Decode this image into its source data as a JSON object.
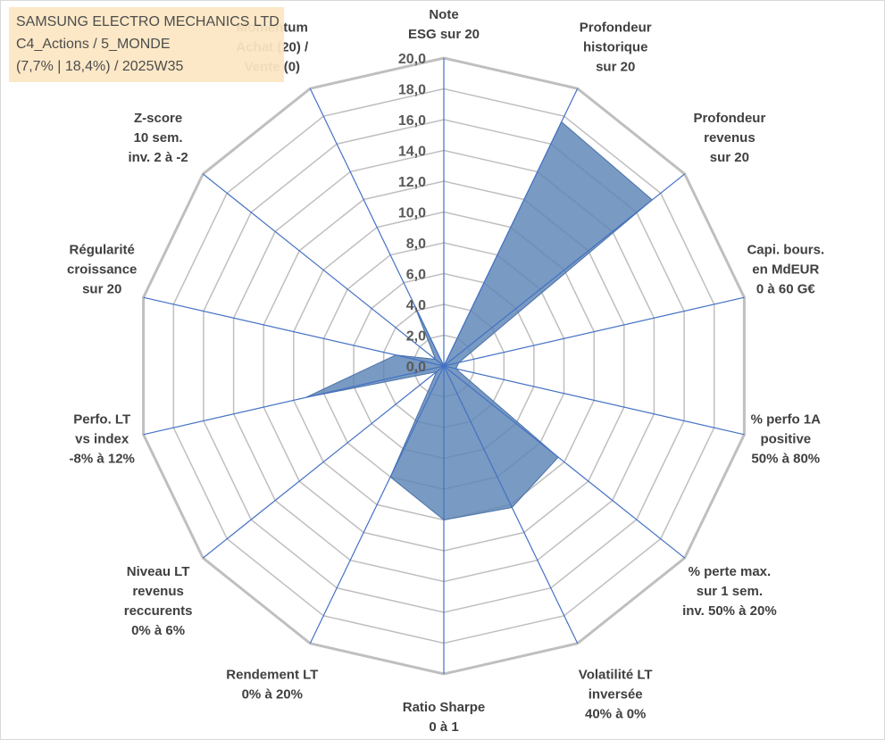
{
  "info_box": {
    "line1": "SAMSUNG ELECTRO MECHANICS LTD",
    "line2": "C4_Actions / 5_MONDE",
    "line3": "(7,7% | 18,4%) / 2025W35"
  },
  "chart_data": {
    "type": "radar",
    "rlim": [
      0,
      20
    ],
    "ticks": [
      "0,0",
      "2,0",
      "4,0",
      "6,0",
      "8,0",
      "10,0",
      "12,0",
      "14,0",
      "16,0",
      "18,0",
      "20,0"
    ],
    "grid": true,
    "colors": {
      "fill": "#5b84b5",
      "grid": "#bfbfbf",
      "spoke": "#4472c4",
      "text": "#404040"
    },
    "axes": [
      [
        "Note",
        "ESG sur 20"
      ],
      [
        "Profondeur",
        "historique",
        "sur 20"
      ],
      [
        "Profondeur",
        "revenus",
        "sur 20"
      ],
      [
        "Capi. bours.",
        "en MdEUR",
        "0 à 60 G€"
      ],
      [
        "% perfo 1A",
        "positive",
        "50% à 80%"
      ],
      [
        "% perte max.",
        "sur 1 sem.",
        "inv. 50% à 20%"
      ],
      [
        "Volatilité LT",
        "inversée",
        "40% à 0%"
      ],
      [
        "Ratio Sharpe",
        "0 à 1"
      ],
      [
        "Rendement LT",
        "0% à 20%"
      ],
      [
        "Niveau LT",
        "revenus",
        "reccurents",
        "0% à 6%"
      ],
      [
        "Perfo. LT",
        "vs index",
        "-8% à 12%"
      ],
      [
        "Régularité",
        "croissance",
        "sur 20"
      ],
      [
        "Z-score",
        "10 sem.",
        "inv. 2 à -2"
      ],
      [
        "Momentum",
        "Achat (20) /",
        "Vente (0)"
      ]
    ],
    "values": [
      0,
      17.6,
      17.3,
      1.0,
      0.8,
      9.5,
      10.2,
      10.0,
      8.0,
      0.6,
      9.2,
      3.2,
      0.7,
      4.5
    ]
  }
}
